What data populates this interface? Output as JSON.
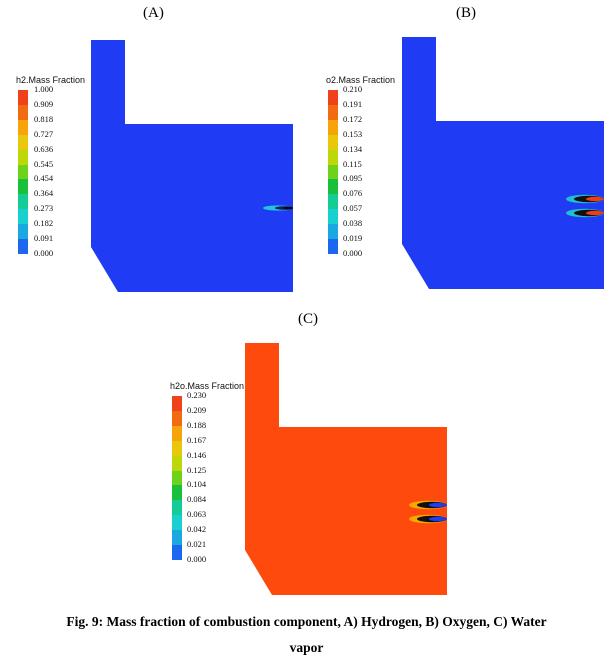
{
  "panels": [
    {
      "label": "(A)",
      "legend_title": "h2.Mass Fraction",
      "ticks": [
        "1.000",
        "0.909",
        "0.818",
        "0.727",
        "0.636",
        "0.545",
        "0.454",
        "0.364",
        "0.273",
        "0.182",
        "0.091",
        "0.000"
      ],
      "fill_color": "#1f3bf4",
      "flame_colors": [
        "#22c4d8",
        "#0d1a66",
        "#000000"
      ]
    },
    {
      "label": "(B)",
      "legend_title": "o2.Mass Fraction",
      "ticks": [
        "0.210",
        "0.191",
        "0.172",
        "0.153",
        "0.134",
        "0.115",
        "0.095",
        "0.076",
        "0.057",
        "0.038",
        "0.019",
        "0.000"
      ],
      "fill_color": "#1f3bf4",
      "flame_colors": [
        "#20c0d0",
        "#101010",
        "#f03c1a"
      ]
    },
    {
      "label": "(C)",
      "legend_title": "h2o.Mass Fraction",
      "ticks": [
        "0.230",
        "0.209",
        "0.188",
        "0.167",
        "0.146",
        "0.125",
        "0.104",
        "0.084",
        "0.063",
        "0.042",
        "0.021",
        "0.000"
      ],
      "fill_color": "#ff4a0d",
      "flame_colors": [
        "#f7a800",
        "#101010",
        "#1f3bf4"
      ]
    }
  ],
  "legend_colors": [
    "#f0421a",
    "#f26b12",
    "#f6a30c",
    "#e8c80a",
    "#bcd80a",
    "#6ed21a",
    "#18c03c",
    "#14cc96",
    "#18d0d0",
    "#1aa8e0",
    "#1c66f0",
    "#1f3bf4"
  ],
  "caption": {
    "line1": "Fig. 9: Mass fraction of combustion component, A) Hydrogen, B) Oxygen, C) Water",
    "line2": "vapor"
  }
}
